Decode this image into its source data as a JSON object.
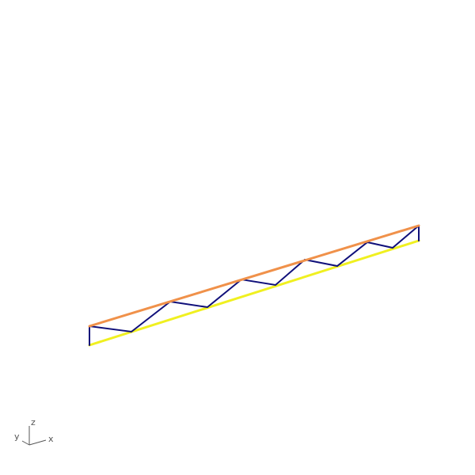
{
  "view": {
    "background": "#ffffff",
    "axis_triad": {
      "x_label": "x",
      "y_label": "y",
      "z_label": "z",
      "color": "#555555"
    }
  },
  "truss": {
    "colors": {
      "top_chord": "#f0914a",
      "bottom_chord": "#f0f020",
      "web": "#10107a"
    }
  }
}
